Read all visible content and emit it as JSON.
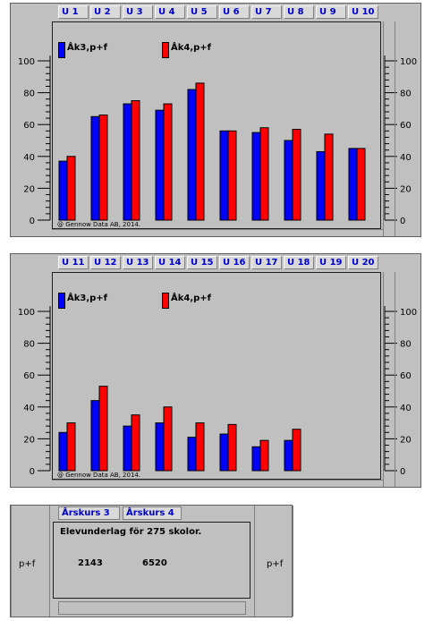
{
  "colors": {
    "series1": "#0000ff",
    "series2": "#ff0000",
    "tab_text": "#0000cc",
    "panel": "#c0c0c0"
  },
  "copyright": "@ Gennow Data AB, 2014.",
  "chart_data": [
    {
      "type": "bar",
      "categories": [
        "U 1",
        "U 2",
        "U 3",
        "U 4",
        "U 5",
        "U 6",
        "U 7",
        "U 8",
        "U 9",
        "U 10"
      ],
      "series": [
        {
          "name": "Åk3,p+f",
          "values": [
            37,
            65,
            73,
            69,
            82,
            56,
            55,
            50,
            43,
            45
          ]
        },
        {
          "name": "Åk4,p+f",
          "values": [
            40,
            66,
            75,
            73,
            86,
            56,
            58,
            57,
            54,
            45
          ]
        }
      ],
      "yticks": [
        "0",
        "20",
        "40",
        "60",
        "80",
        "100"
      ],
      "ylim": [
        0,
        100
      ],
      "legend_position": "top-left",
      "grid": false
    },
    {
      "type": "bar",
      "categories": [
        "U 11",
        "U 12",
        "U 13",
        "U 14",
        "U 15",
        "U 16",
        "U 17",
        "U 18",
        "U 19",
        "U 20"
      ],
      "series": [
        {
          "name": "Åk3,p+f",
          "values": [
            24,
            44,
            28,
            30,
            21,
            23,
            15,
            19,
            null,
            null
          ]
        },
        {
          "name": "Åk4,p+f",
          "values": [
            30,
            53,
            35,
            40,
            30,
            29,
            19,
            26,
            null,
            null
          ]
        }
      ],
      "yticks": [
        "0",
        "20",
        "40",
        "60",
        "80",
        "100"
      ],
      "ylim": [
        0,
        100
      ],
      "legend_position": "top-left",
      "grid": false
    }
  ],
  "summary": {
    "tabs": [
      "Årskurs 3",
      "Årskurs 4"
    ],
    "heading": "Elevunderlag för 275 skolor.",
    "value1": "2143",
    "value2": "6520",
    "left_label": "p+f",
    "right_label": "p+f"
  }
}
